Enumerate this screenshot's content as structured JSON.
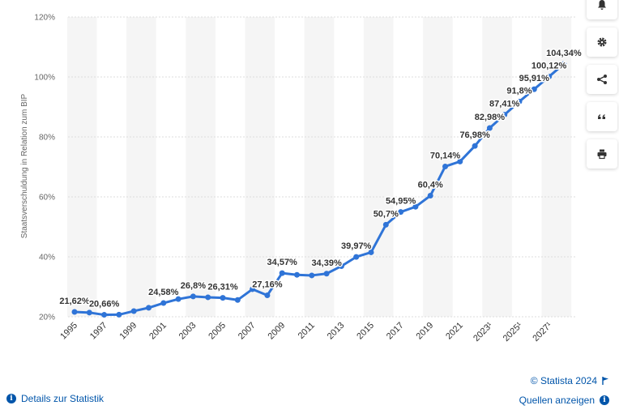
{
  "chart_data": {
    "type": "line",
    "title": "",
    "xlabel": "",
    "ylabel": "Staatsverschuldung in Relation zum BIP",
    "ylim": [
      20,
      120
    ],
    "yticks": [
      "20%",
      "40%",
      "60%",
      "80%",
      "100%",
      "120%"
    ],
    "grid": true,
    "x": [
      "1995",
      "1996",
      "1997",
      "1998",
      "1999",
      "2000",
      "2001",
      "2002",
      "2003",
      "2004",
      "2005",
      "2006",
      "2007",
      "2008",
      "2009",
      "2010",
      "2011",
      "2012",
      "2013",
      "2014",
      "2015",
      "2016",
      "2017",
      "2018",
      "2019",
      "2020",
      "2021",
      "2022",
      "2023¹",
      "2024¹",
      "2025¹",
      "2026¹",
      "2027¹",
      "2028¹"
    ],
    "xtick_labels": [
      "1995",
      "1997",
      "1999",
      "2001",
      "2003",
      "2005",
      "2007",
      "2009",
      "2011",
      "2013",
      "2015",
      "2017",
      "2019",
      "2021",
      "2023¹",
      "2025¹",
      "2027¹"
    ],
    "series": [
      {
        "color": "#2f74d7",
        "values": [
          21.62,
          21.4,
          20.66,
          20.7,
          21.9,
          23.0,
          24.58,
          25.9,
          26.8,
          26.5,
          26.31,
          25.6,
          29.2,
          27.16,
          34.57,
          34.0,
          33.8,
          34.39,
          36.9,
          39.97,
          41.5,
          50.7,
          54.95,
          56.7,
          60.4,
          70.14,
          71.8,
          76.98,
          82.98,
          87.41,
          91.8,
          95.91,
          100.12,
          104.34
        ],
        "labels": [
          "21,62%",
          "",
          "20,66%",
          "",
          "",
          "",
          "24,58%",
          "",
          "26,8%",
          "",
          "26,31%",
          "",
          "",
          "27,16%",
          "34,57%",
          "",
          "",
          "34,39%",
          "",
          "39,97%",
          "",
          "50,7%",
          "54,95%",
          "",
          "60,4%",
          "70,14%",
          "",
          "76,98%",
          "82,98%",
          "87,41%",
          "91,8%",
          "95,91%",
          "100,12%",
          "104,34%"
        ]
      }
    ]
  },
  "footer": {
    "copyright": "© Statista 2024",
    "sources_label": "Quellen anzeigen",
    "details_label": "Details zur Statistik"
  },
  "toolbar": {
    "icons": [
      "bell-icon",
      "gear-icon",
      "share-icon",
      "quote-icon",
      "print-icon"
    ]
  }
}
